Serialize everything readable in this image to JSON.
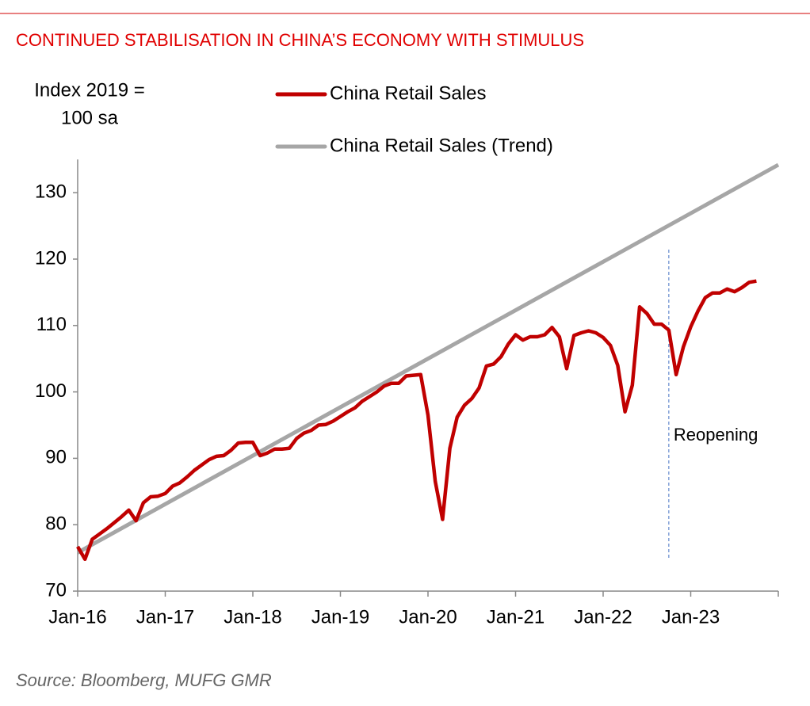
{
  "chart_data": {
    "type": "line",
    "title": "CONTINUED STABILISATION IN CHINA’S ECONOMY WITH STIMULUS",
    "y_axis_label": [
      "Index 2019 =",
      "100 sa"
    ],
    "source": "Source: Bloomberg, MUFG GMR",
    "series": [
      {
        "name": "China Retail Sales",
        "color": "#c00000",
        "x": [
          "Jan-16",
          "Feb-16",
          "Mar-16",
          "Apr-16",
          "May-16",
          "Jun-16",
          "Jul-16",
          "Aug-16",
          "Sep-16",
          "Oct-16",
          "Nov-16",
          "Dec-16",
          "Jan-17",
          "Feb-17",
          "Mar-17",
          "Apr-17",
          "May-17",
          "Jun-17",
          "Jul-17",
          "Aug-17",
          "Sep-17",
          "Oct-17",
          "Nov-17",
          "Dec-17",
          "Jan-18",
          "Feb-18",
          "Mar-18",
          "Apr-18",
          "May-18",
          "Jun-18",
          "Jul-18",
          "Aug-18",
          "Sep-18",
          "Oct-18",
          "Nov-18",
          "Dec-18",
          "Jan-19",
          "Feb-19",
          "Mar-19",
          "Apr-19",
          "May-19",
          "Jun-19",
          "Jul-19",
          "Aug-19",
          "Sep-19",
          "Oct-19",
          "Nov-19",
          "Dec-19",
          "Jan-20",
          "Feb-20",
          "Mar-20",
          "Apr-20",
          "May-20",
          "Jun-20",
          "Jul-20",
          "Aug-20",
          "Sep-20",
          "Oct-20",
          "Nov-20",
          "Dec-20",
          "Jan-21",
          "Feb-21",
          "Mar-21",
          "Apr-21",
          "May-21",
          "Jun-21",
          "Jul-21",
          "Aug-21",
          "Sep-21",
          "Oct-21",
          "Nov-21",
          "Dec-21",
          "Jan-22",
          "Feb-22",
          "Mar-22",
          "Apr-22",
          "May-22",
          "Jun-22",
          "Jul-22",
          "Aug-22",
          "Sep-22",
          "Oct-22",
          "Nov-22",
          "Dec-22",
          "Jan-23",
          "Feb-23",
          "Mar-23",
          "Apr-23",
          "May-23",
          "Jun-23",
          "Jul-23",
          "Aug-23",
          "Sep-23",
          "Oct-23"
        ],
        "values": [
          76.7,
          74.8,
          77.8,
          78.6,
          79.4,
          80.3,
          81.2,
          82.2,
          80.6,
          83.3,
          84.2,
          84.3,
          84.7,
          85.8,
          86.3,
          87.2,
          88.2,
          89.0,
          89.8,
          90.3,
          90.4,
          91.2,
          92.3,
          92.4,
          92.4,
          90.4,
          90.8,
          91.4,
          91.4,
          91.5,
          93.0,
          93.8,
          94.2,
          95.0,
          95.1,
          95.6,
          96.3,
          97.0,
          97.6,
          98.6,
          99.3,
          100.0,
          100.9,
          101.3,
          101.3,
          102.4,
          102.5,
          102.6,
          96.5,
          86.5,
          80.8,
          91.5,
          96.2,
          98.0,
          99.0,
          100.6,
          103.9,
          104.2,
          105.3,
          107.2,
          108.6,
          107.8,
          108.3,
          108.3,
          108.6,
          109.7,
          108.3,
          103.5,
          108.5,
          108.9,
          109.2,
          108.9,
          108.2,
          107.0,
          104.0,
          97.0,
          101.0,
          112.8,
          111.8,
          110.2,
          110.2,
          109.3,
          102.6,
          106.8,
          109.8,
          112.2,
          114.2,
          114.9,
          114.9,
          115.5,
          115.1,
          115.7,
          116.5,
          116.7
        ]
      },
      {
        "name": "China Retail Sales (Trend)",
        "color": "#a6a6a6",
        "x": [
          "Jan-16",
          "Jan-24"
        ],
        "values": [
          75.8,
          134.2
        ]
      }
    ],
    "annotations": [
      {
        "text": "Reopening",
        "x": "Oct-22"
      }
    ],
    "xlim": [
      "Jan-16",
      "Jan-24"
    ],
    "xticks": [
      "Jan-16",
      "Jan-17",
      "Jan-18",
      "Jan-19",
      "Jan-20",
      "Jan-21",
      "Jan-22",
      "Jan-23"
    ],
    "ylim": [
      70,
      135
    ],
    "yticks": [
      70,
      80,
      90,
      100,
      110,
      120,
      130
    ],
    "grid": false
  }
}
